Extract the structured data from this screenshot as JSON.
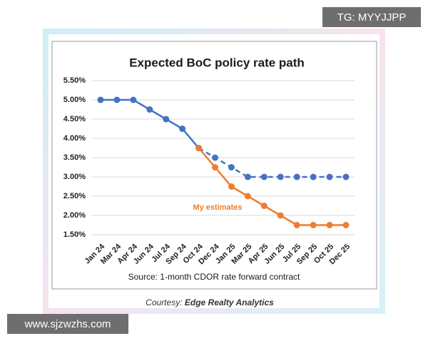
{
  "chart_data": {
    "type": "line",
    "title": "Expected BoC policy rate path",
    "categories": [
      "Jan 24",
      "Mar 24",
      "Apr 24",
      "Jun 24",
      "Jul 24",
      "Sep 24",
      "Oct 24",
      "Dec 24",
      "Jan 25",
      "Mar 25",
      "Apr 25",
      "Jun 25",
      "Jul 25",
      "Sep 25",
      "Oct 25",
      "Dec 25"
    ],
    "series": [
      {
        "color": "#4472c4",
        "dash_from": 6,
        "values": [
          5.0,
          5.0,
          5.0,
          4.75,
          4.5,
          4.25,
          3.75,
          3.5,
          3.25,
          3.0,
          3.0,
          3.0,
          3.0,
          3.0,
          3.0,
          3.0
        ]
      },
      {
        "name": "My estimates",
        "color": "#ed7d31",
        "values": [
          null,
          null,
          null,
          null,
          null,
          null,
          3.75,
          3.25,
          2.75,
          2.5,
          2.25,
          2.0,
          1.75,
          1.75,
          1.75,
          1.75
        ]
      }
    ],
    "ylim": [
      1.5,
      5.5
    ],
    "yticks": [
      {
        "value": 1.5,
        "label": "1.50%"
      },
      {
        "value": 2.0,
        "label": "2.00%"
      },
      {
        "value": 2.5,
        "label": "2.50%"
      },
      {
        "value": 3.0,
        "label": "3.00%"
      },
      {
        "value": 3.5,
        "label": "3.50%"
      },
      {
        "value": 4.0,
        "label": "4.00%"
      },
      {
        "value": 4.5,
        "label": "4.50%"
      },
      {
        "value": 5.0,
        "label": "5.00%"
      },
      {
        "value": 5.5,
        "label": "5.50%"
      }
    ],
    "grid": true,
    "source": "Source: 1-month CDOR rate forward contract"
  },
  "courtesy": {
    "label": "Courtesy:",
    "name": "Edge Realty Analytics"
  },
  "watermarks": [
    "TG: MYYJJPP",
    "www.sjzwzhs.com"
  ]
}
